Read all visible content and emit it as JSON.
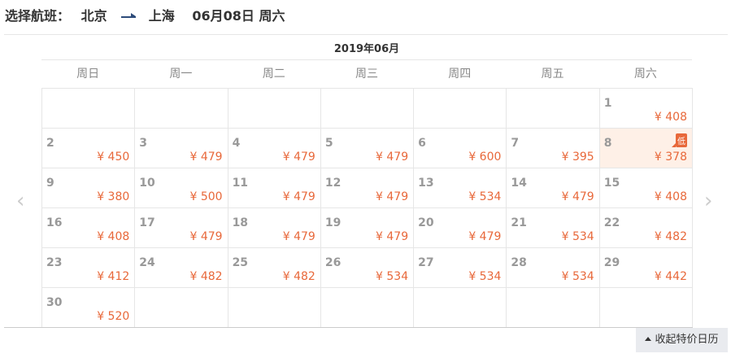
{
  "header": {
    "label": "选择航班：",
    "from": "北京",
    "to": "上海",
    "date": "06月08日 周六"
  },
  "calendar": {
    "month": "2019年06月",
    "weekdays": [
      "周日",
      "周一",
      "周二",
      "周三",
      "周四",
      "周五",
      "周六"
    ],
    "currency": "¥",
    "selected_day": "8",
    "lowest_badge": "低",
    "lowest_day": "8",
    "days": [
      {
        "day": "",
        "price": ""
      },
      {
        "day": "",
        "price": ""
      },
      {
        "day": "",
        "price": ""
      },
      {
        "day": "",
        "price": ""
      },
      {
        "day": "",
        "price": ""
      },
      {
        "day": "",
        "price": ""
      },
      {
        "day": "1",
        "price": "¥ 408"
      },
      {
        "day": "2",
        "price": "¥ 450"
      },
      {
        "day": "3",
        "price": "¥ 479"
      },
      {
        "day": "4",
        "price": "¥ 479"
      },
      {
        "day": "5",
        "price": "¥ 479"
      },
      {
        "day": "6",
        "price": "¥ 600"
      },
      {
        "day": "7",
        "price": "¥ 395"
      },
      {
        "day": "8",
        "price": "¥ 378"
      },
      {
        "day": "9",
        "price": "¥ 380"
      },
      {
        "day": "10",
        "price": "¥ 500"
      },
      {
        "day": "11",
        "price": "¥ 479"
      },
      {
        "day": "12",
        "price": "¥ 479"
      },
      {
        "day": "13",
        "price": "¥ 534"
      },
      {
        "day": "14",
        "price": "¥ 479"
      },
      {
        "day": "15",
        "price": "¥ 408"
      },
      {
        "day": "16",
        "price": "¥ 408"
      },
      {
        "day": "17",
        "price": "¥ 479"
      },
      {
        "day": "18",
        "price": "¥ 479"
      },
      {
        "day": "19",
        "price": "¥ 479"
      },
      {
        "day": "20",
        "price": "¥ 479"
      },
      {
        "day": "21",
        "price": "¥ 534"
      },
      {
        "day": "22",
        "price": "¥ 482"
      },
      {
        "day": "23",
        "price": "¥ 412"
      },
      {
        "day": "24",
        "price": "¥ 482"
      },
      {
        "day": "25",
        "price": "¥ 482"
      },
      {
        "day": "26",
        "price": "¥ 534"
      },
      {
        "day": "27",
        "price": "¥ 534"
      },
      {
        "day": "28",
        "price": "¥ 534"
      },
      {
        "day": "29",
        "price": "¥ 442"
      },
      {
        "day": "30",
        "price": "¥ 520"
      },
      {
        "day": "",
        "price": ""
      },
      {
        "day": "",
        "price": ""
      },
      {
        "day": "",
        "price": ""
      },
      {
        "day": "",
        "price": ""
      },
      {
        "day": "",
        "price": ""
      },
      {
        "day": "",
        "price": ""
      }
    ],
    "prev_icon": "‹",
    "next_icon": "›"
  },
  "collapse_button": {
    "label": "收起特价日历"
  },
  "colors": {
    "price": "#e8683a",
    "selected_bg": "#fef0e7"
  }
}
